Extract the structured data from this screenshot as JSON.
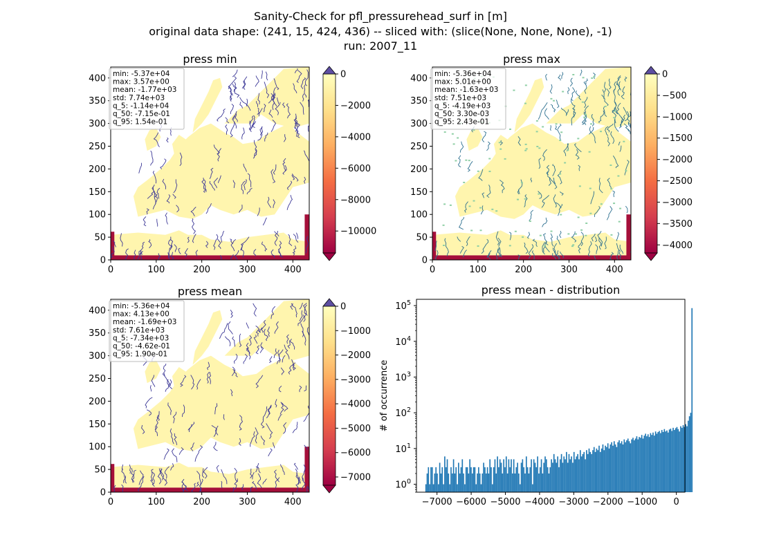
{
  "figure": {
    "title_lines": [
      "Sanity-Check for pfl_pressurehead_surf in [m]",
      "original data shape: (241, 15, 424, 436) -- sliced with: (slice(None, None, None), -1)",
      "run: 2007_11"
    ]
  },
  "colors": {
    "land": "#fff5ae",
    "rivers": "#3b3796",
    "river_green": "#8fcfa5",
    "boundary": "#a50f3a",
    "hist_bar": "#1f77b4",
    "colormap": [
      "#9e0142",
      "#d53e4f",
      "#f46d43",
      "#fdae61",
      "#fee08b",
      "#ffffbf"
    ],
    "extend_max": "#5e4fa2",
    "extend_min": "#9e0142"
  },
  "chart_data": [
    {
      "type": "heatmap",
      "title": "press min",
      "x_ticks": [
        0,
        100,
        200,
        300,
        400
      ],
      "y_ticks": [
        0,
        50,
        100,
        150,
        200,
        250,
        300,
        350,
        400
      ],
      "xlim": [
        0,
        436
      ],
      "ylim": [
        0,
        424
      ],
      "colorbar": {
        "range": [
          -11400,
          0
        ],
        "ticks": [
          0,
          -2000,
          -4000,
          -6000,
          -8000,
          -10000
        ],
        "labels": [
          "0",
          "−2000",
          "−4000",
          "−6000",
          "−8000",
          "−10000"
        ]
      },
      "stats": [
        "min: -5.37e+04",
        "max: 3.57e+00",
        "mean: -1.77e+03",
        "std: 7.74e+03",
        "q_5: -1.14e+04",
        "q_50: -7.15e-01",
        "q_95: 1.54e-01"
      ]
    },
    {
      "type": "heatmap",
      "title": "press max",
      "x_ticks": [
        0,
        100,
        200,
        300,
        400
      ],
      "y_ticks": [
        0,
        50,
        100,
        150,
        200,
        250,
        300,
        350,
        400
      ],
      "xlim": [
        0,
        436
      ],
      "ylim": [
        0,
        424
      ],
      "colorbar": {
        "range": [
          -4190,
          0
        ],
        "ticks": [
          0,
          -500,
          -1000,
          -1500,
          -2000,
          -2500,
          -3000,
          -3500,
          -4000
        ],
        "labels": [
          "0",
          "−500",
          "−1000",
          "−1500",
          "−2000",
          "−2500",
          "−3000",
          "−3500",
          "−4000"
        ]
      },
      "stats": [
        "min: -5.36e+04",
        "max: 5.01e+00",
        "mean: -1.63e+03",
        "std: 7.51e+03",
        "q_5: -4.19e+03",
        "q_50: 3.30e-03",
        "q_95: 2.43e-01"
      ]
    },
    {
      "type": "heatmap",
      "title": "press mean",
      "x_ticks": [
        0,
        100,
        200,
        300,
        400
      ],
      "y_ticks": [
        0,
        50,
        100,
        150,
        200,
        250,
        300,
        350,
        400
      ],
      "xlim": [
        0,
        436
      ],
      "ylim": [
        0,
        424
      ],
      "colorbar": {
        "range": [
          -7340,
          0
        ],
        "ticks": [
          0,
          -1000,
          -2000,
          -3000,
          -4000,
          -5000,
          -6000,
          -7000
        ],
        "labels": [
          "0",
          "−1000",
          "−2000",
          "−3000",
          "−4000",
          "−5000",
          "−6000",
          "−7000"
        ]
      },
      "stats": [
        "min: -5.36e+04",
        "max: 4.13e+00",
        "mean: -1.69e+03",
        "std: 7.61e+03",
        "q_5: -7.34e+03",
        "q_50: -4.62e-01",
        "q_95: 1.90e-01"
      ]
    },
    {
      "type": "bar",
      "title": "press mean - distribution",
      "ylabel": "# of occurrence",
      "yscale": "log",
      "xlim": [
        -7600,
        250
      ],
      "ylim": [
        0.6,
        150000
      ],
      "x_ticks": [
        -7000,
        -6000,
        -5000,
        -4000,
        -3000,
        -2000,
        -1000,
        0
      ],
      "x_tick_labels": [
        "−7000",
        "−6000",
        "−5000",
        "−4000",
        "−3000",
        "−2000",
        "−1000",
        "0"
      ],
      "y_ticks": [
        1,
        10,
        100,
        1000,
        10000,
        100000
      ],
      "y_tick_labels": [
        [
          "10",
          "0"
        ],
        [
          "10",
          "1"
        ],
        [
          "10",
          "2"
        ],
        [
          "10",
          "3"
        ],
        [
          "10",
          "4"
        ],
        [
          "10",
          "5"
        ]
      ],
      "bin_start": -7340,
      "bin_width": 36.7,
      "counts": [
        1,
        2,
        3,
        1,
        3,
        3,
        1,
        2,
        3,
        2,
        1,
        4,
        2,
        3,
        1,
        6,
        3,
        5,
        2,
        1,
        3,
        2,
        5,
        2,
        3,
        1,
        4,
        2,
        3,
        5,
        2,
        1,
        3,
        3,
        2,
        5,
        3,
        2,
        3,
        3,
        1,
        2,
        3,
        2,
        1,
        2,
        4,
        3,
        2,
        3,
        2,
        5,
        3,
        1,
        3,
        5,
        2,
        6,
        3,
        5,
        4,
        2,
        5,
        3,
        6,
        2,
        5,
        3,
        5,
        2,
        5,
        2,
        3,
        4,
        2,
        1,
        4,
        5,
        3,
        2,
        6,
        3,
        2,
        3,
        5,
        1,
        5,
        4,
        3,
        6,
        2,
        3,
        5,
        2,
        4,
        6,
        5,
        3,
        2,
        3,
        5,
        4,
        7,
        5,
        4,
        6,
        3,
        5,
        7,
        4,
        6,
        5,
        8,
        4,
        7,
        5,
        6,
        4,
        8,
        5,
        6,
        7,
        5,
        9,
        6,
        7,
        8,
        5,
        9,
        7,
        10,
        8,
        7,
        9,
        11,
        8,
        10,
        9,
        12,
        8,
        10,
        13,
        9,
        12,
        11,
        14,
        10,
        13,
        15,
        12,
        16,
        13,
        11,
        15,
        17,
        14,
        16,
        13,
        18,
        15,
        17,
        19,
        16,
        14,
        18,
        20,
        17,
        19,
        22,
        18,
        21,
        20,
        24,
        19,
        23,
        26,
        22,
        25,
        21,
        27,
        24,
        28,
        23,
        30,
        26,
        29,
        31,
        27,
        33,
        29,
        35,
        30,
        32,
        28,
        34,
        36,
        31,
        38,
        33,
        37,
        40,
        35,
        30,
        42,
        38,
        45,
        40,
        48,
        42,
        60,
        80,
        100,
        85000
      ]
    }
  ]
}
